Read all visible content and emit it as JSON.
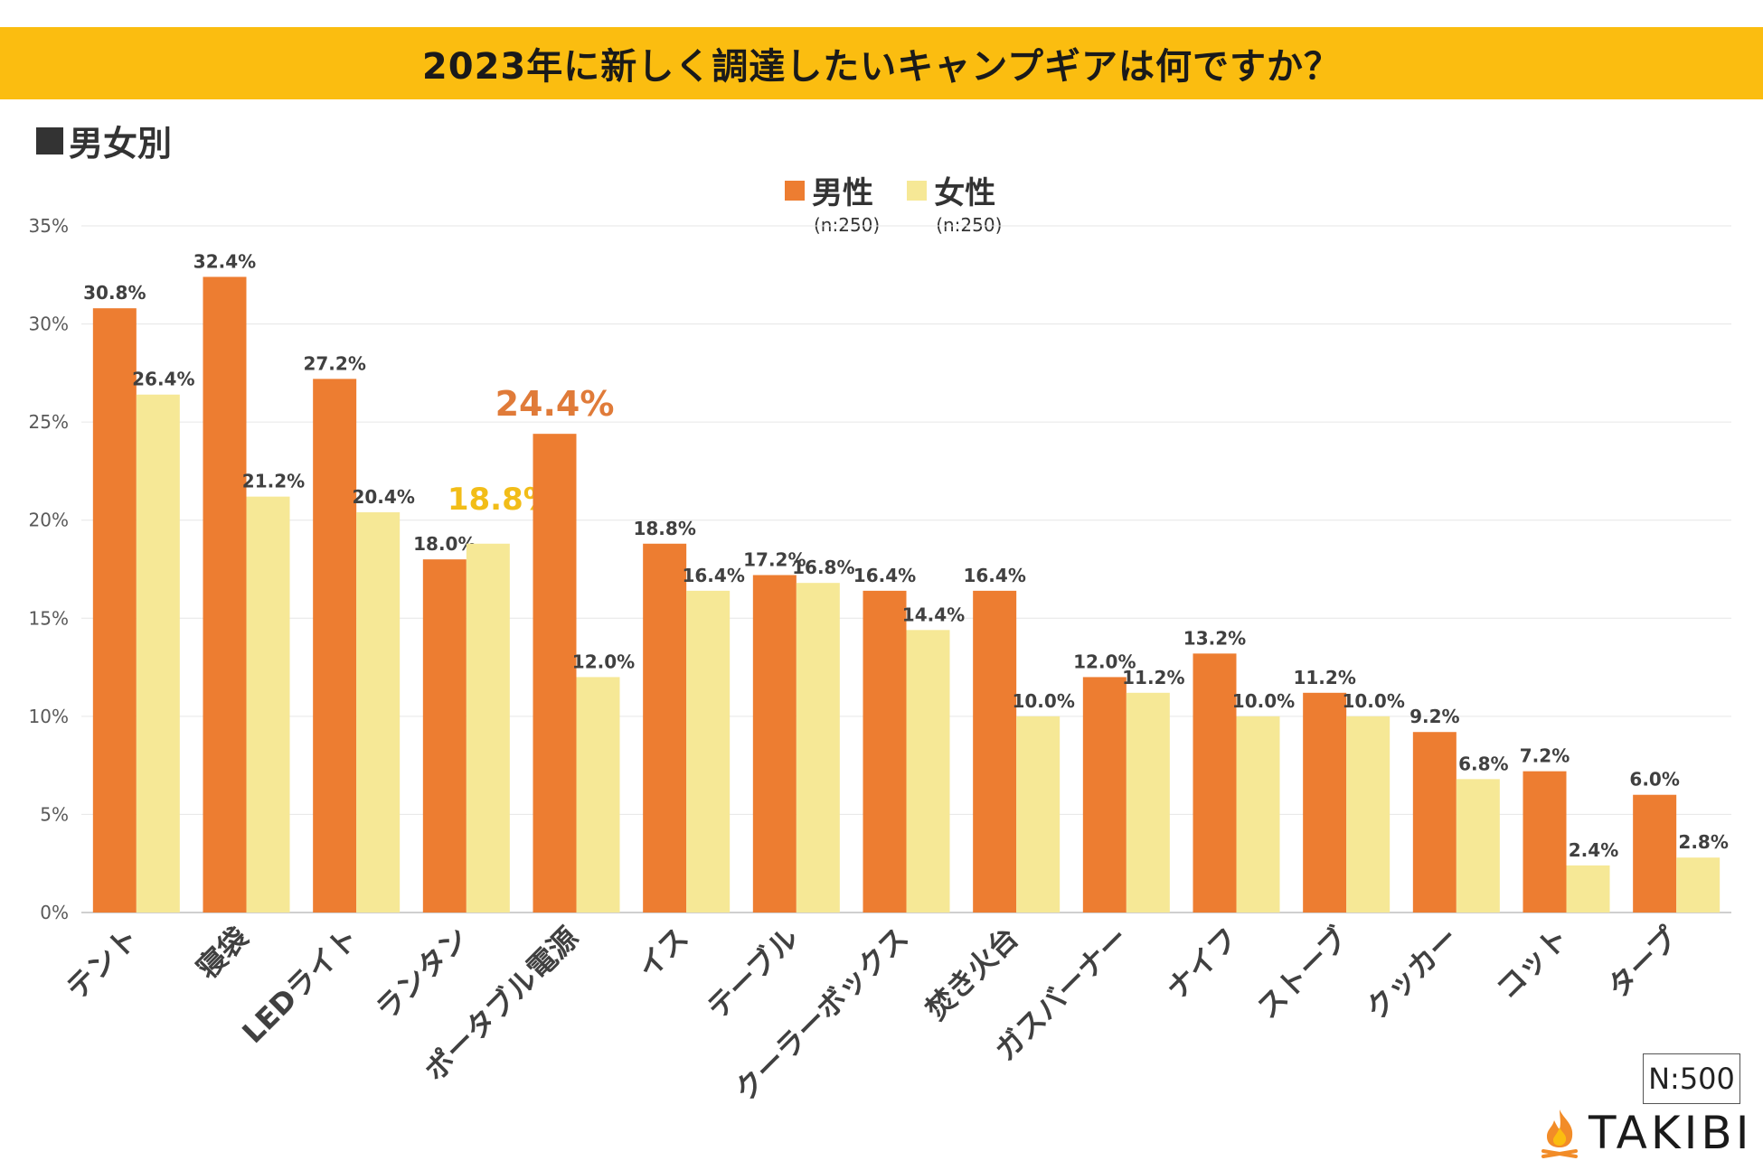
{
  "header": {
    "title": "2023年に新しく調達したいキャンプギアは何ですか？"
  },
  "section": {
    "label": "男女別"
  },
  "legend": [
    {
      "name": "男性",
      "n": "(n:250)",
      "color": "#ed7d31"
    },
    {
      "name": "女性",
      "n": "(n:250)",
      "color": "#f6e896"
    }
  ],
  "footer": {
    "sample_size": "N:500",
    "brand": "TAKIBI",
    "brand_icon": "flame-icon"
  },
  "colors": {
    "male": "#ed7d31",
    "female": "#f6e896",
    "highlight_male": "#e07b39",
    "highlight_female": "#f2bd18"
  },
  "chart_data": {
    "type": "bar",
    "categories": [
      "テント",
      "寝袋",
      "LEDライト",
      "ランタン",
      "ポータブル電源",
      "イス",
      "テーブル",
      "クーラーボックス",
      "焚き火台",
      "ガスバーナー",
      "ナイフ",
      "ストーブ",
      "クッカー",
      "コット",
      "タープ"
    ],
    "series": [
      {
        "name": "男性",
        "values": [
          30.8,
          32.4,
          27.2,
          18.0,
          24.4,
          18.8,
          17.2,
          16.4,
          16.4,
          12.0,
          13.2,
          11.2,
          9.2,
          7.2,
          6.0
        ]
      },
      {
        "name": "女性",
        "values": [
          26.4,
          21.2,
          20.4,
          18.8,
          12.0,
          16.4,
          16.8,
          14.4,
          10.0,
          11.2,
          10.0,
          10.0,
          6.8,
          2.4,
          2.8
        ]
      }
    ],
    "data_labels": [
      [
        "30.8%",
        "32.4%",
        "27.2%",
        "18.0%",
        "24.4%",
        "18.8%",
        "17.2%",
        "16.4%",
        "16.4%",
        "12.0%",
        "13.2%",
        "11.2%",
        "9.2%",
        "7.2%",
        "6.0%"
      ],
      [
        "26.4%",
        "21.2%",
        "20.4%",
        "18.8%",
        "12.0%",
        "16.4%",
        "16.8%",
        "14.4%",
        "10.0%",
        "11.2%",
        "10.0%",
        "10.0%",
        "6.8%",
        "2.4%",
        "2.8%"
      ]
    ],
    "highlights": [
      {
        "series": 0,
        "category": "ポータブル電源"
      },
      {
        "series": 1,
        "category": "ランタン"
      }
    ],
    "ylim": [
      0,
      35
    ],
    "yticks": [
      "0%",
      "5%",
      "10%",
      "15%",
      "20%",
      "25%",
      "30%",
      "35%"
    ],
    "grid": true,
    "legend_position": "top-center"
  }
}
